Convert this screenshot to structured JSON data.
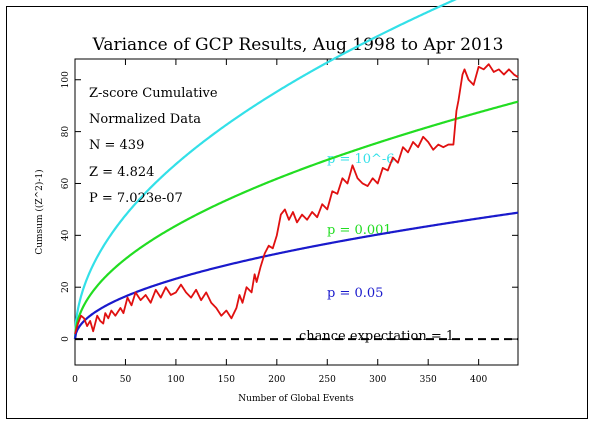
{
  "chart_data": {
    "type": "line",
    "title": "Variance of GCP Results, Aug 1998 to Apr 2013",
    "xlabel": "Number of Global Events",
    "ylabel": "Cumsum ((Z^2)-1)",
    "xlim": [
      0,
      439
    ],
    "ylim": [
      -10,
      108
    ],
    "x_ticks": [
      0,
      50,
      100,
      150,
      200,
      250,
      300,
      350,
      400
    ],
    "y_ticks": [
      0,
      20,
      40,
      60,
      80,
      100
    ],
    "grid": false,
    "annotations": [
      "Z-score Cumulative",
      "Normalized Data",
      "N = 439",
      "Z = 4.824",
      "P = 7.023e-07"
    ],
    "series": [
      {
        "name": "p = 10^-6",
        "color": "#33e0e8",
        "kind": "envelope",
        "coef": 4.77
      },
      {
        "name": "p = 0.001",
        "color": "#22dd22",
        "kind": "envelope",
        "coef": 3.09
      },
      {
        "name": "p = 0.05",
        "color": "#1a1acc",
        "kind": "envelope",
        "coef": 1.645
      },
      {
        "name": "chance expectation = 1",
        "color": "#000000",
        "kind": "baseline",
        "value": 0
      },
      {
        "name": "",
        "color": "#e01010",
        "kind": "data",
        "x": [
          0,
          3,
          6,
          9,
          12,
          15,
          18,
          20,
          22,
          25,
          28,
          30,
          33,
          36,
          40,
          45,
          48,
          52,
          56,
          60,
          65,
          70,
          75,
          80,
          85,
          90,
          95,
          100,
          105,
          110,
          115,
          120,
          125,
          130,
          135,
          140,
          145,
          150,
          155,
          160,
          163,
          166,
          170,
          175,
          178,
          180,
          184,
          188,
          192,
          196,
          200,
          204,
          208,
          212,
          216,
          220,
          225,
          230,
          235,
          240,
          245,
          250,
          255,
          260,
          265,
          270,
          275,
          280,
          285,
          290,
          295,
          300,
          305,
          310,
          315,
          320,
          325,
          330,
          335,
          340,
          345,
          350,
          355,
          360,
          365,
          370,
          375,
          378,
          380,
          382,
          384,
          386,
          390,
          395,
          400,
          405,
          410,
          415,
          420,
          425,
          430,
          435,
          439
        ],
        "y": [
          2,
          6,
          9,
          8,
          5,
          7,
          3,
          6,
          9,
          7,
          6,
          10,
          8,
          11,
          9,
          12,
          10,
          16,
          13,
          18,
          15,
          17,
          14,
          19,
          16,
          20,
          17,
          18,
          21,
          18,
          16,
          19,
          15,
          18,
          14,
          12,
          9,
          11,
          8,
          12,
          17,
          14,
          20,
          18,
          25,
          22,
          28,
          33,
          36,
          35,
          40,
          48,
          50,
          46,
          49,
          45,
          48,
          46,
          49,
          47,
          52,
          50,
          57,
          56,
          62,
          60,
          67,
          62,
          60,
          59,
          62,
          60,
          66,
          65,
          70,
          68,
          74,
          72,
          76,
          74,
          78,
          76,
          73,
          75,
          74,
          75,
          75,
          88,
          92,
          97,
          102,
          104,
          100,
          98,
          105,
          104,
          106,
          103,
          104,
          102,
          104,
          102,
          101
        ]
      }
    ]
  }
}
